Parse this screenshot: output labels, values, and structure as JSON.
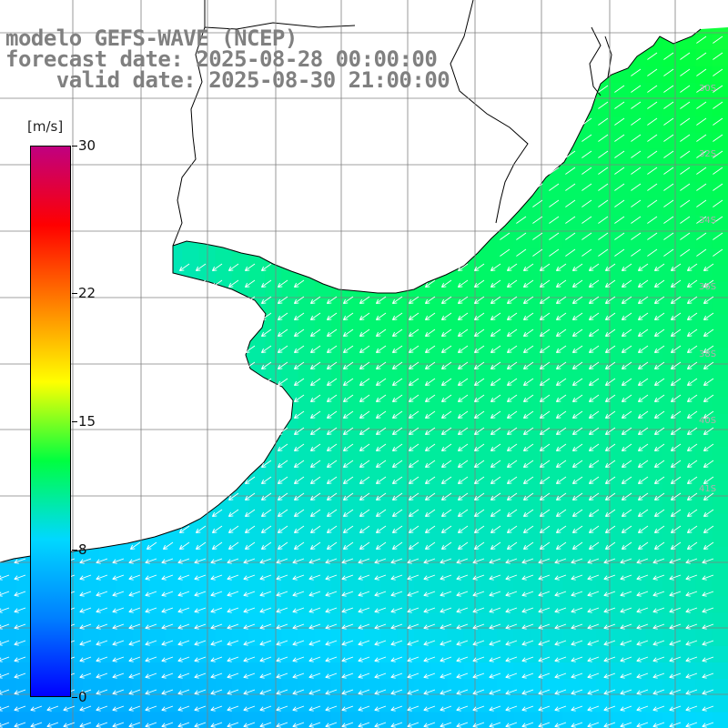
{
  "title": {
    "line1": "modelo GEFS-WAVE (NCEP)",
    "line2": "forecast date: 2025-08-28 00:00:00",
    "line3": "    valid date: 2025-08-30 21:00:00"
  },
  "colorbar": {
    "unit": "[m/s]",
    "ticks": [
      {
        "label": "30",
        "value": 30
      },
      {
        "label": "22",
        "value": 22
      },
      {
        "label": "15",
        "value": 15
      },
      {
        "label": "8",
        "value": 8
      },
      {
        "label": "0",
        "value": 0
      }
    ],
    "stops": [
      "#0000ff",
      "#0080ff",
      "#00d8ff",
      "#00ff40",
      "#ffff00",
      "#ff8000",
      "#ff0000",
      "#c00080"
    ]
  },
  "map": {
    "variable": "wind speed",
    "land_color": "#ffffff",
    "coast_color": "#000000",
    "grid_color": "#808080",
    "arrow_color": "#ffffff",
    "lat_labels": [
      "30S",
      "32S",
      "34S",
      "36S",
      "38S",
      "40S",
      "41S"
    ]
  }
}
